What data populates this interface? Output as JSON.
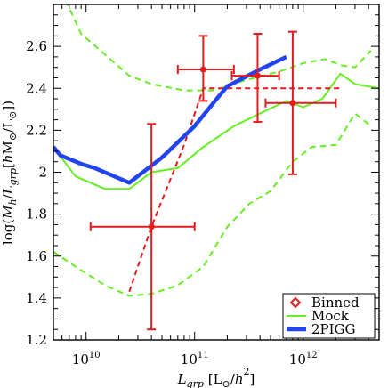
{
  "chart_data": {
    "type": "line",
    "xscale": "log",
    "xlim": [
      5000000000.0,
      5000000000000.0
    ],
    "ylim": [
      1.2,
      2.8
    ],
    "x_ticks": [
      {
        "value": 10000000000.0,
        "base": "10",
        "exp": "10"
      },
      {
        "value": 100000000000.0,
        "base": "10",
        "exp": "11"
      },
      {
        "value": 1000000000000.0,
        "base": "10",
        "exp": "12"
      }
    ],
    "y_ticks": [
      "1.2",
      "1.4",
      "1.6",
      "1.8",
      "2",
      "2.2",
      "2.4",
      "2.6"
    ],
    "xlabel": "L_grp [L⊙/h²]",
    "ylabel": "log(M_h / L_grp [h M⊙/L⊙])",
    "legend_position": "bottom-right",
    "colors": {
      "binned": "#e41a1c",
      "mock": "#66ee22",
      "pigg": "#2244ee"
    },
    "series": [
      {
        "name": "2PIGG",
        "style": "thick-blue-line",
        "points": [
          [
            5000000000.0,
            2.12
          ],
          [
            5800000000.0,
            2.08
          ],
          [
            9000000000.0,
            2.04
          ],
          [
            12000000000.0,
            2.02
          ],
          [
            25000000000.0,
            1.95
          ],
          [
            50000000000.0,
            2.07
          ],
          [
            100000000000.0,
            2.22
          ],
          [
            160000000000.0,
            2.35
          ],
          [
            200000000000.0,
            2.41
          ],
          [
            400000000000.0,
            2.49
          ],
          [
            700000000000.0,
            2.55
          ]
        ]
      },
      {
        "name": "Mock",
        "style": "solid-green-line",
        "points": [
          [
            5000000000.0,
            2.12
          ],
          [
            8000000000.0,
            1.98
          ],
          [
            15000000000.0,
            1.92
          ],
          [
            25000000000.0,
            1.92
          ],
          [
            40000000000.0,
            2.0
          ],
          [
            70000000000.0,
            2.02
          ],
          [
            120000000000.0,
            2.12
          ],
          [
            230000000000.0,
            2.22
          ],
          [
            400000000000.0,
            2.28
          ],
          [
            700000000000.0,
            2.34
          ],
          [
            1000000000000.0,
            2.31
          ],
          [
            1500000000000.0,
            2.35
          ],
          [
            2200000000000.0,
            2.47
          ],
          [
            3000000000000.0,
            2.42
          ],
          [
            5000000000000.0,
            2.4
          ]
        ]
      },
      {
        "name": "Mock upper",
        "style": "dashed-green-line",
        "points": [
          [
            6500000000.0,
            2.82
          ],
          [
            9000000000.0,
            2.66
          ],
          [
            15000000000.0,
            2.56
          ],
          [
            25000000000.0,
            2.46
          ],
          [
            40000000000.0,
            2.42
          ],
          [
            80000000000.0,
            2.39
          ],
          [
            150000000000.0,
            2.39
          ],
          [
            300000000000.0,
            2.44
          ],
          [
            600000000000.0,
            2.48
          ],
          [
            1000000000000.0,
            2.52
          ],
          [
            1600000000000.0,
            2.54
          ],
          [
            2200000000000.0,
            2.51
          ],
          [
            3000000000000.0,
            2.5
          ],
          [
            4200000000000.0,
            2.58
          ]
        ]
      },
      {
        "name": "Mock lower",
        "style": "dashed-green-line",
        "points": [
          [
            5000000000.0,
            1.62
          ],
          [
            8000000000.0,
            1.55
          ],
          [
            15000000000.0,
            1.46
          ],
          [
            25000000000.0,
            1.41
          ],
          [
            40000000000.0,
            1.42
          ],
          [
            70000000000.0,
            1.46
          ],
          [
            120000000000.0,
            1.55
          ],
          [
            200000000000.0,
            1.74
          ],
          [
            320000000000.0,
            1.85
          ],
          [
            500000000000.0,
            1.91
          ],
          [
            800000000000.0,
            2.05
          ],
          [
            1200000000000.0,
            2.12
          ],
          [
            2000000000000.0,
            2.13
          ],
          [
            3000000000000.0,
            2.28
          ],
          [
            4200000000000.0,
            2.22
          ]
        ]
      },
      {
        "name": "Binned dashed",
        "style": "dashed-red-line",
        "points": [
          [
            25000000000.0,
            1.43
          ],
          [
            40000000000.0,
            1.74
          ],
          [
            80000000000.0,
            2.13
          ],
          [
            120000000000.0,
            2.4
          ],
          [
            2200000000000.0,
            2.4
          ]
        ]
      }
    ],
    "binned_points": [
      {
        "x": 40000000000.0,
        "y": 1.74,
        "x_lo": 11000000000.0,
        "x_hi": 100000000000.0,
        "y_lo": 1.25,
        "y_hi": 2.23
      },
      {
        "x": 120000000000.0,
        "y": 2.49,
        "x_lo": 70000000000.0,
        "x_hi": 230000000000.0,
        "y_lo": 2.34,
        "y_hi": 2.65
      },
      {
        "x": 380000000000.0,
        "y": 2.46,
        "x_lo": 220000000000.0,
        "x_hi": 600000000000.0,
        "y_lo": 2.24,
        "y_hi": 2.66
      },
      {
        "x": 800000000000.0,
        "y": 2.33,
        "x_lo": 450000000000.0,
        "x_hi": 2000000000000.0,
        "y_lo": 1.99,
        "y_hi": 2.67
      }
    ],
    "legend": [
      {
        "label": "Binned",
        "kind": "diamond"
      },
      {
        "label": "Mock",
        "kind": "green-line"
      },
      {
        "label": "2PIGG",
        "kind": "blue-line"
      }
    ]
  }
}
